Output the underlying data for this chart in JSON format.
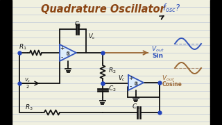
{
  "bg_color": "#f0f0e0",
  "lined_color": "#c0c8d8",
  "title": "Quadrature Oscillator",
  "title_color": "#8B4513",
  "circuit_color": "#111111",
  "blue_color": "#3355bb",
  "brown_color": "#996633",
  "dot_color": "#2244bb",
  "fosc_color": "#3355bb",
  "vout_sin_color": "#3355bb",
  "vout_cos_color": "#996633",
  "sine_blue_color": "#3355bb",
  "sine_brown_color": "#996633",
  "amp_fill": "#ddeeff",
  "amp_stroke": "#3355bb",
  "border_color": "#111111"
}
